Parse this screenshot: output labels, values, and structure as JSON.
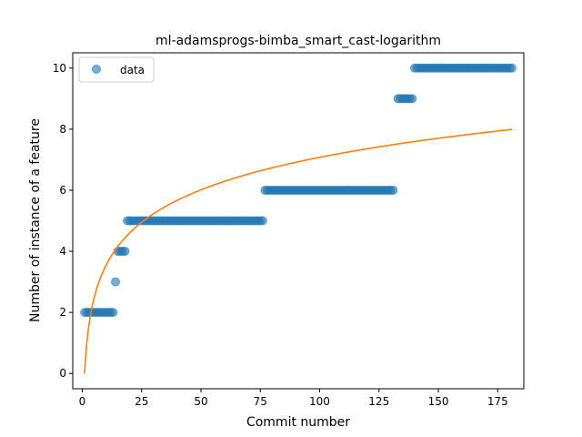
{
  "chart_data": {
    "type": "scatter",
    "title": "ml-adamsprogs-bimba_smart_cast-logarithm",
    "xlabel": "Commit number",
    "ylabel": "Number of instance of a feature",
    "xlim": [
      -4,
      186
    ],
    "ylim": [
      -0.5,
      10.5
    ],
    "xticks": [
      0,
      25,
      50,
      75,
      100,
      125,
      150,
      175
    ],
    "yticks": [
      0,
      2,
      4,
      6,
      8,
      10
    ],
    "grid": false,
    "legend_position": "upper-left",
    "colors": {
      "data": "#1f77b4",
      "fit": "#ff7f0e"
    },
    "series": [
      {
        "name": "data",
        "kind": "scatter",
        "segments": [
          {
            "x_start": 1,
            "x_end": 13,
            "y": 2
          },
          {
            "x_start": 14,
            "x_end": 14,
            "y": 3
          },
          {
            "x_start": 15,
            "x_end": 18,
            "y": 4
          },
          {
            "x_start": 19,
            "x_end": 76,
            "y": 5
          },
          {
            "x_start": 77,
            "x_end": 131,
            "y": 6
          },
          {
            "x_start": 133,
            "x_end": 139,
            "y": 9
          },
          {
            "x_start": 140,
            "x_end": 181,
            "y": 10
          }
        ]
      },
      {
        "kind": "line",
        "function": "logarithmic",
        "a": 1.537,
        "x_start": 1,
        "x_end": 181
      }
    ]
  }
}
